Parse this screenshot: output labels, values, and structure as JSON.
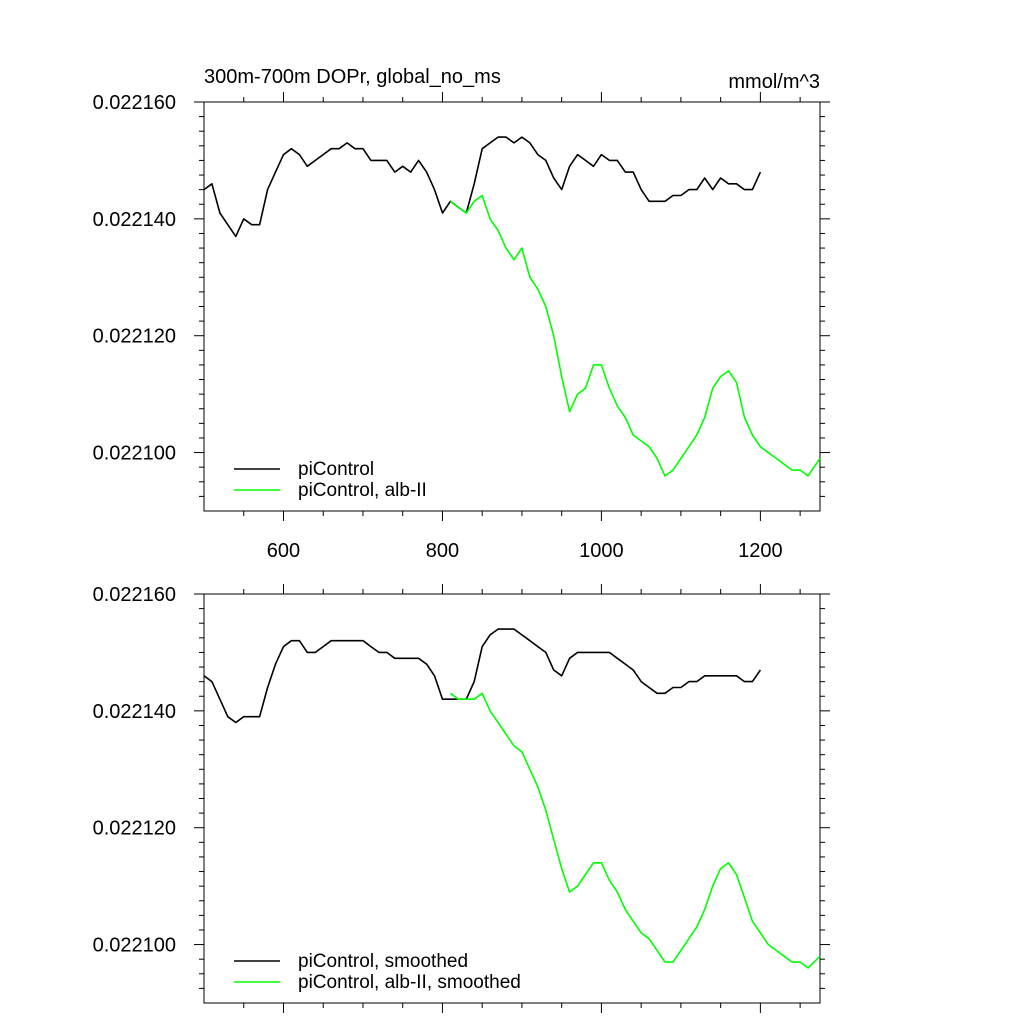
{
  "chart_data": [
    {
      "type": "line",
      "title": "300m-700m DOPr, global_no_ms",
      "units": "mmol/m^3",
      "xlim": [
        500,
        1275
      ],
      "ylim": [
        0.02209,
        0.02216
      ],
      "xticks": [
        600,
        800,
        1000,
        1200
      ],
      "xtick_labels": [
        "600",
        "800",
        "1000",
        "1200"
      ],
      "yticks": [
        0.0221,
        0.02212,
        0.02214,
        0.02216
      ],
      "ytick_labels": [
        "0.022100",
        "0.022120",
        "0.022140",
        "0.022160"
      ],
      "legend_position": "bottom-left",
      "series": [
        {
          "name": "piControl",
          "color": "#000000",
          "x": [
            500,
            510,
            520,
            530,
            540,
            550,
            560,
            570,
            580,
            590,
            600,
            610,
            620,
            630,
            640,
            650,
            660,
            670,
            680,
            690,
            700,
            710,
            720,
            730,
            740,
            750,
            760,
            770,
            780,
            790,
            800,
            810,
            820,
            830,
            840,
            850,
            860,
            870,
            880,
            890,
            900,
            910,
            920,
            930,
            940,
            950,
            960,
            970,
            980,
            990,
            1000,
            1010,
            1020,
            1030,
            1040,
            1050,
            1060,
            1070,
            1080,
            1090,
            1100,
            1110,
            1120,
            1130,
            1140,
            1150,
            1160,
            1170,
            1180,
            1190,
            1200
          ],
          "y": [
            0.022145,
            0.022146,
            0.022141,
            0.022139,
            0.022137,
            0.02214,
            0.022139,
            0.022139,
            0.022145,
            0.022148,
            0.022151,
            0.022152,
            0.022151,
            0.022149,
            0.02215,
            0.022151,
            0.022152,
            0.022152,
            0.022153,
            0.022152,
            0.022152,
            0.02215,
            0.02215,
            0.02215,
            0.022148,
            0.022149,
            0.022148,
            0.02215,
            0.022148,
            0.022145,
            0.022141,
            0.022143,
            0.022142,
            0.022141,
            0.022146,
            0.022152,
            0.022153,
            0.022154,
            0.022154,
            0.022153,
            0.022154,
            0.022153,
            0.022151,
            0.02215,
            0.022147,
            0.022145,
            0.022149,
            0.022151,
            0.02215,
            0.022149,
            0.022151,
            0.02215,
            0.02215,
            0.022148,
            0.022148,
            0.022145,
            0.022143,
            0.022143,
            0.022143,
            0.022144,
            0.022144,
            0.022145,
            0.022145,
            0.022147,
            0.022145,
            0.022147,
            0.022146,
            0.022146,
            0.022145,
            0.022145,
            0.022148
          ]
        },
        {
          "name": "piControl, alb-II",
          "color": "#00ff00",
          "x": [
            810,
            820,
            830,
            840,
            850,
            860,
            870,
            880,
            890,
            900,
            910,
            920,
            930,
            940,
            950,
            960,
            970,
            980,
            990,
            1000,
            1010,
            1020,
            1030,
            1040,
            1050,
            1060,
            1070,
            1080,
            1090,
            1100,
            1110,
            1120,
            1130,
            1140,
            1150,
            1160,
            1170,
            1180,
            1190,
            1200,
            1210,
            1220,
            1230,
            1240,
            1250,
            1260,
            1275
          ],
          "y": [
            0.022143,
            0.022142,
            0.022141,
            0.022143,
            0.022144,
            0.02214,
            0.022138,
            0.022135,
            0.022133,
            0.022135,
            0.02213,
            0.022128,
            0.022125,
            0.02212,
            0.022113,
            0.022107,
            0.02211,
            0.022111,
            0.022115,
            0.022115,
            0.022111,
            0.022108,
            0.022106,
            0.022103,
            0.022102,
            0.022101,
            0.022099,
            0.022096,
            0.022097,
            0.022099,
            0.022101,
            0.022103,
            0.022106,
            0.022111,
            0.022113,
            0.022114,
            0.022112,
            0.022106,
            0.022103,
            0.022101,
            0.0221,
            0.022099,
            0.022098,
            0.022097,
            0.022097,
            0.022096,
            0.022099
          ]
        }
      ]
    },
    {
      "type": "line",
      "title": "",
      "xlim": [
        500,
        1275
      ],
      "ylim": [
        0.02209,
        0.02216
      ],
      "xticks": [
        600,
        800,
        1000,
        1200
      ],
      "yticks": [
        0.0221,
        0.02212,
        0.02214,
        0.02216
      ],
      "ytick_labels": [
        "0.022100",
        "0.022120",
        "0.022140",
        "0.022160"
      ],
      "legend_position": "bottom-left",
      "series": [
        {
          "name": "piControl, smoothed",
          "color": "#000000",
          "x": [
            500,
            510,
            520,
            530,
            540,
            550,
            560,
            570,
            580,
            590,
            600,
            610,
            620,
            630,
            640,
            650,
            660,
            670,
            680,
            690,
            700,
            710,
            720,
            730,
            740,
            750,
            760,
            770,
            780,
            790,
            800,
            810,
            820,
            830,
            840,
            850,
            860,
            870,
            880,
            890,
            900,
            910,
            920,
            930,
            940,
            950,
            960,
            970,
            980,
            990,
            1000,
            1010,
            1020,
            1030,
            1040,
            1050,
            1060,
            1070,
            1080,
            1090,
            1100,
            1110,
            1120,
            1130,
            1140,
            1150,
            1160,
            1170,
            1180,
            1190,
            1200
          ],
          "y": [
            0.022146,
            0.022145,
            0.022142,
            0.022139,
            0.022138,
            0.022139,
            0.022139,
            0.022139,
            0.022144,
            0.022148,
            0.022151,
            0.022152,
            0.022152,
            0.02215,
            0.02215,
            0.022151,
            0.022152,
            0.022152,
            0.022152,
            0.022152,
            0.022152,
            0.022151,
            0.02215,
            0.02215,
            0.022149,
            0.022149,
            0.022149,
            0.022149,
            0.022148,
            0.022146,
            0.022142,
            0.022142,
            0.022142,
            0.022142,
            0.022145,
            0.022151,
            0.022153,
            0.022154,
            0.022154,
            0.022154,
            0.022153,
            0.022152,
            0.022151,
            0.02215,
            0.022147,
            0.022146,
            0.022149,
            0.02215,
            0.02215,
            0.02215,
            0.02215,
            0.02215,
            0.022149,
            0.022148,
            0.022147,
            0.022145,
            0.022144,
            0.022143,
            0.022143,
            0.022144,
            0.022144,
            0.022145,
            0.022145,
            0.022146,
            0.022146,
            0.022146,
            0.022146,
            0.022146,
            0.022145,
            0.022145,
            0.022147
          ]
        },
        {
          "name": "piControl, alb-II, smoothed",
          "color": "#00ff00",
          "x": [
            810,
            820,
            830,
            840,
            850,
            860,
            870,
            880,
            890,
            900,
            910,
            920,
            930,
            940,
            950,
            960,
            970,
            980,
            990,
            1000,
            1010,
            1020,
            1030,
            1040,
            1050,
            1060,
            1070,
            1080,
            1090,
            1100,
            1110,
            1120,
            1130,
            1140,
            1150,
            1160,
            1170,
            1180,
            1190,
            1200,
            1210,
            1220,
            1230,
            1240,
            1250,
            1260,
            1275
          ],
          "y": [
            0.022143,
            0.022142,
            0.022142,
            0.022142,
            0.022143,
            0.02214,
            0.022138,
            0.022136,
            0.022134,
            0.022133,
            0.02213,
            0.022127,
            0.022123,
            0.022118,
            0.022113,
            0.022109,
            0.02211,
            0.022112,
            0.022114,
            0.022114,
            0.022111,
            0.022109,
            0.022106,
            0.022104,
            0.022102,
            0.022101,
            0.022099,
            0.022097,
            0.022097,
            0.022099,
            0.022101,
            0.022103,
            0.022106,
            0.02211,
            0.022113,
            0.022114,
            0.022112,
            0.022108,
            0.022104,
            0.022102,
            0.0221,
            0.022099,
            0.022098,
            0.022097,
            0.022097,
            0.022096,
            0.022098
          ]
        }
      ]
    }
  ]
}
